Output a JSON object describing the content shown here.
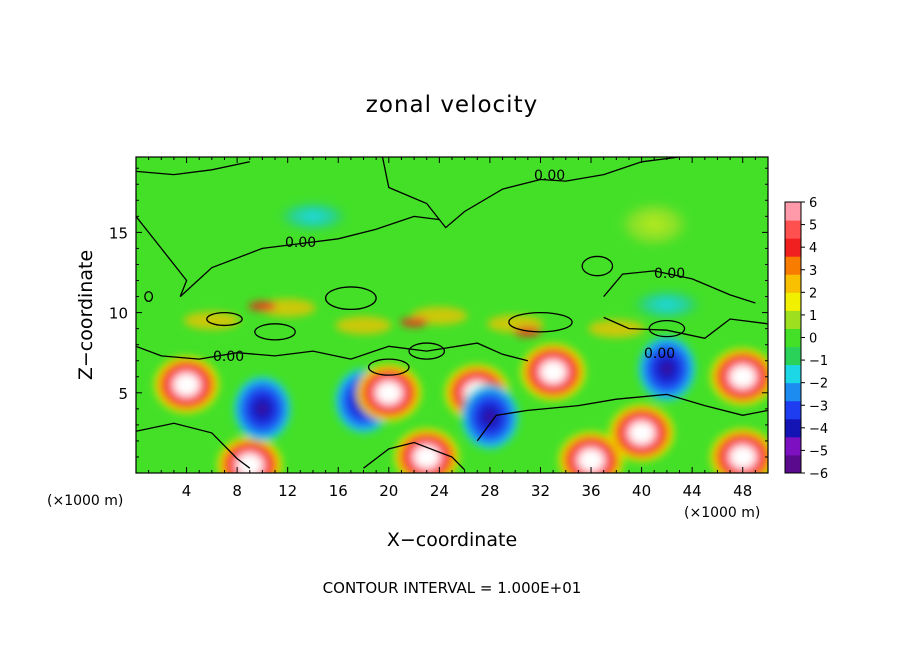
{
  "chart_data": {
    "type": "heatmap",
    "title": "zonal velocity",
    "xlabel": "X−coordinate",
    "ylabel": "Z−coordinate",
    "x_unit_note": "(×1000 m)",
    "x_unit_note_right": "(×1000 m)",
    "footer": "CONTOUR INTERVAL = 1.000E+01",
    "xlim": [
      0,
      50
    ],
    "ylim": [
      0,
      19.7
    ],
    "xticks": [
      4,
      8,
      12,
      16,
      20,
      24,
      28,
      32,
      36,
      40,
      44,
      48
    ],
    "yticks": [
      5,
      10,
      15
    ],
    "colorbar": {
      "min": -6,
      "max": 6,
      "ticks": [
        "6",
        "5",
        "4",
        "3",
        "2",
        "1",
        "0",
        "−1",
        "−2",
        "−3",
        "−4",
        "−5",
        "−6"
      ],
      "colors": [
        "#5a0a8c",
        "#7d10c0",
        "#1414b4",
        "#1e3cf0",
        "#1c8cf0",
        "#1cd8e6",
        "#2ad25a",
        "#44e028",
        "#9ee020",
        "#f0f000",
        "#f8c000",
        "#f87c00",
        "#f02020",
        "#ff5050",
        "#ff9aaa"
      ]
    },
    "contour_labels": [
      "0.00",
      "0.00",
      "0.00",
      "0.00",
      "0.00"
    ],
    "series": [
      {
        "values": [
          {
            "x": 4,
            "z": 5.5,
            "u": 6
          },
          {
            "x": 9,
            "z": 0.5,
            "u": 6
          },
          {
            "x": 10,
            "z": 4.0,
            "u": -6
          },
          {
            "x": 18,
            "z": 4.5,
            "u": -6
          },
          {
            "x": 20,
            "z": 5.0,
            "u": 6
          },
          {
            "x": 23,
            "z": 1.0,
            "u": 6
          },
          {
            "x": 27,
            "z": 5.0,
            "u": 6
          },
          {
            "x": 28,
            "z": 3.5,
            "u": -6
          },
          {
            "x": 33,
            "z": 6.3,
            "u": 6
          },
          {
            "x": 36,
            "z": 0.8,
            "u": 6
          },
          {
            "x": 40,
            "z": 2.5,
            "u": 6
          },
          {
            "x": 42,
            "z": 6.5,
            "u": -6
          },
          {
            "x": 48,
            "z": 6.0,
            "u": 6
          },
          {
            "x": 48,
            "z": 1.0,
            "u": 6
          },
          {
            "x": 42,
            "z": 10.5,
            "u": -2
          },
          {
            "x": 14,
            "z": 16.0,
            "u": -2
          },
          {
            "x": 41,
            "z": 15.5,
            "u": 1
          }
        ]
      }
    ]
  }
}
